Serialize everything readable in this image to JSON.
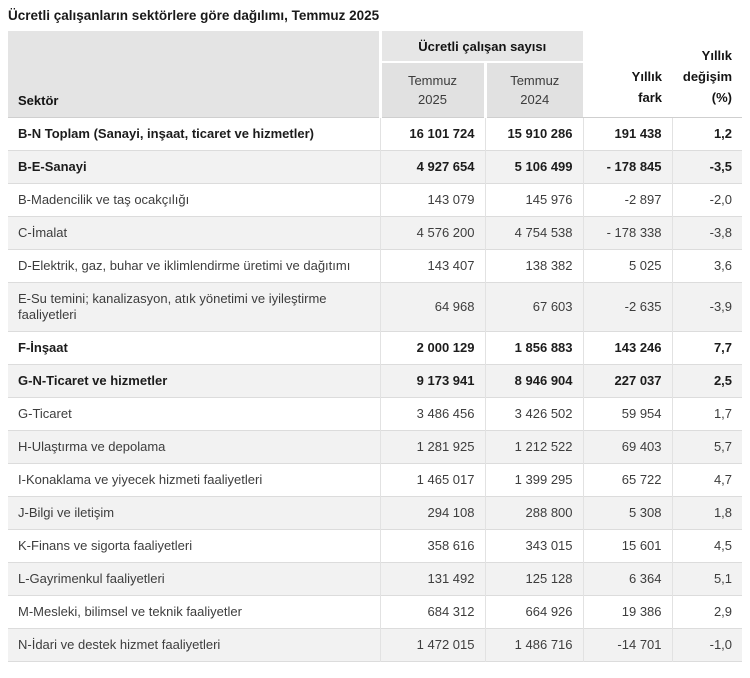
{
  "title": "Ücretli çalışanların sektörlere göre dağılımı, Temmuz 2025",
  "header": {
    "sector_label": "Sektör",
    "group_label": "Ücretli çalışan sayısı",
    "periods": [
      {
        "month": "Temmuz",
        "year": "2025"
      },
      {
        "month": "Temmuz",
        "year": "2024"
      }
    ],
    "diff_label": "Yıllık fark",
    "pct_label": "Yıllık değişim (%)"
  },
  "colors": {
    "header_bg": "#e4e4e4",
    "subheader_bg": "#e1e1e1",
    "row_alt_bg": "#f2f2f2",
    "row_border": "#dcdcdc"
  },
  "chart_data": {
    "type": "table",
    "title": "Ücretli çalışanların sektörlere göre dağılımı, Temmuz 2025",
    "group_header": {
      "label": "Ücretli çalışan sayısı",
      "spans": [
        "Temmuz 2025",
        "Temmuz 2024"
      ]
    },
    "columns": [
      "Sektör",
      "Temmuz 2025",
      "Temmuz 2024",
      "Yıllık fark",
      "Yıllık değişim (%)"
    ],
    "rows": [
      {
        "sector": "B-N Toplam (Sanayi, inşaat, ticaret ve hizmetler)",
        "jul2025": "16 101 724",
        "jul2024": "15 910 286",
        "diff": "191 438",
        "pct": "1,2",
        "bold": true
      },
      {
        "sector": "B-E-Sanayi",
        "jul2025": "4 927 654",
        "jul2024": "5 106 499",
        "diff": "- 178 845",
        "pct": "-3,5",
        "bold": true
      },
      {
        "sector": "B-Madencilik ve taş ocakçılığı",
        "jul2025": "143 079",
        "jul2024": "145 976",
        "diff": "-2 897",
        "pct": "-2,0",
        "bold": false
      },
      {
        "sector": "C-İmalat",
        "jul2025": "4 576 200",
        "jul2024": "4 754 538",
        "diff": "- 178 338",
        "pct": "-3,8",
        "bold": false
      },
      {
        "sector": "D-Elektrik, gaz, buhar ve iklimlendirme üretimi ve dağıtımı",
        "jul2025": "143 407",
        "jul2024": "138 382",
        "diff": "5 025",
        "pct": "3,6",
        "bold": false
      },
      {
        "sector": "E-Su temini; kanalizasyon, atık yönetimi ve iyileştirme faaliyetleri",
        "jul2025": "64 968",
        "jul2024": "67 603",
        "diff": "-2 635",
        "pct": "-3,9",
        "bold": false
      },
      {
        "sector": "F-İnşaat",
        "jul2025": "2 000 129",
        "jul2024": "1 856 883",
        "diff": "143 246",
        "pct": "7,7",
        "bold": true
      },
      {
        "sector": "G-N-Ticaret ve hizmetler",
        "jul2025": "9 173 941",
        "jul2024": "8 946 904",
        "diff": "227 037",
        "pct": "2,5",
        "bold": true
      },
      {
        "sector": "G-Ticaret",
        "jul2025": "3 486 456",
        "jul2024": "3 426 502",
        "diff": "59 954",
        "pct": "1,7",
        "bold": false
      },
      {
        "sector": "H-Ulaştırma ve depolama",
        "jul2025": "1 281 925",
        "jul2024": "1 212 522",
        "diff": "69 403",
        "pct": "5,7",
        "bold": false
      },
      {
        "sector": "I-Konaklama ve yiyecek hizmeti faaliyetleri",
        "jul2025": "1 465 017",
        "jul2024": "1 399 295",
        "diff": "65 722",
        "pct": "4,7",
        "bold": false
      },
      {
        "sector": "J-Bilgi ve iletişim",
        "jul2025": "294 108",
        "jul2024": "288 800",
        "diff": "5 308",
        "pct": "1,8",
        "bold": false
      },
      {
        "sector": "K-Finans ve sigorta faaliyetleri",
        "jul2025": "358 616",
        "jul2024": "343 015",
        "diff": "15 601",
        "pct": "4,5",
        "bold": false
      },
      {
        "sector": "L-Gayrimenkul faaliyetleri",
        "jul2025": "131 492",
        "jul2024": "125 128",
        "diff": "6 364",
        "pct": "5,1",
        "bold": false
      },
      {
        "sector": "M-Mesleki, bilimsel ve teknik faaliyetler",
        "jul2025": "684 312",
        "jul2024": "664 926",
        "diff": "19 386",
        "pct": "2,9",
        "bold": false
      },
      {
        "sector": "N-İdari ve destek hizmet faaliyetleri",
        "jul2025": "1 472 015",
        "jul2024": "1 486 716",
        "diff": "-14 701",
        "pct": "-1,0",
        "bold": false
      }
    ]
  }
}
